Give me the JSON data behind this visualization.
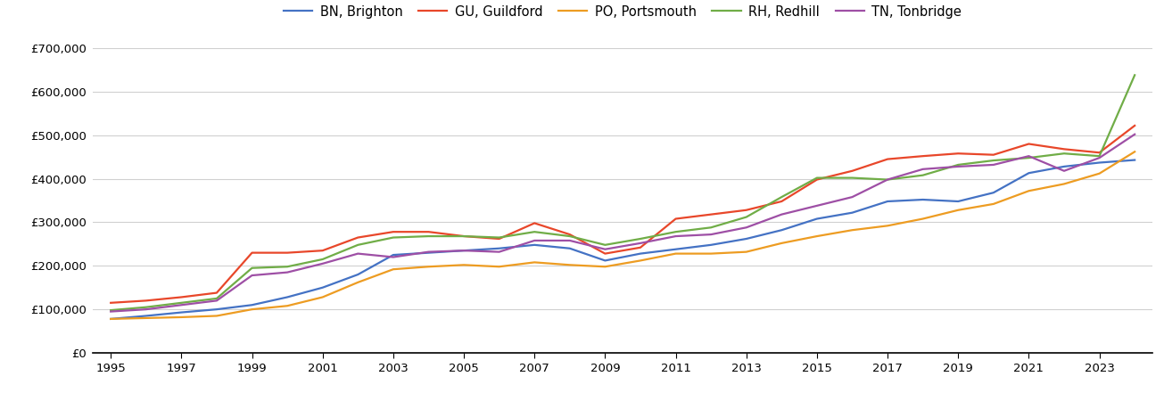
{
  "years": [
    1995,
    1996,
    1997,
    1998,
    1999,
    2000,
    2001,
    2002,
    2003,
    2004,
    2005,
    2006,
    2007,
    2008,
    2009,
    2010,
    2011,
    2012,
    2013,
    2014,
    2015,
    2016,
    2017,
    2018,
    2019,
    2020,
    2021,
    2022,
    2023,
    2024
  ],
  "BN_Brighton": [
    78000,
    85000,
    93000,
    100000,
    110000,
    128000,
    150000,
    180000,
    225000,
    230000,
    235000,
    240000,
    248000,
    240000,
    212000,
    228000,
    238000,
    248000,
    262000,
    282000,
    308000,
    322000,
    348000,
    352000,
    348000,
    368000,
    413000,
    428000,
    437000,
    443000
  ],
  "GU_Guildford": [
    115000,
    120000,
    128000,
    138000,
    230000,
    230000,
    235000,
    265000,
    278000,
    278000,
    268000,
    262000,
    298000,
    272000,
    228000,
    242000,
    308000,
    318000,
    328000,
    348000,
    398000,
    418000,
    445000,
    452000,
    458000,
    455000,
    480000,
    468000,
    460000,
    522000
  ],
  "PO_Portsmouth": [
    78000,
    80000,
    82000,
    85000,
    100000,
    108000,
    128000,
    162000,
    192000,
    198000,
    202000,
    198000,
    208000,
    202000,
    198000,
    212000,
    228000,
    228000,
    232000,
    252000,
    268000,
    282000,
    292000,
    308000,
    328000,
    342000,
    372000,
    388000,
    412000,
    462000
  ],
  "RH_Redhill": [
    98000,
    105000,
    115000,
    125000,
    195000,
    198000,
    215000,
    248000,
    265000,
    268000,
    268000,
    265000,
    278000,
    268000,
    248000,
    262000,
    278000,
    288000,
    312000,
    358000,
    402000,
    402000,
    398000,
    408000,
    432000,
    442000,
    448000,
    458000,
    452000,
    638000
  ],
  "TN_Tonbridge": [
    95000,
    100000,
    110000,
    120000,
    178000,
    185000,
    205000,
    228000,
    220000,
    232000,
    235000,
    232000,
    258000,
    258000,
    238000,
    252000,
    268000,
    272000,
    288000,
    318000,
    338000,
    358000,
    398000,
    422000,
    428000,
    432000,
    452000,
    418000,
    448000,
    502000
  ],
  "colors": {
    "BN_Brighton": "#4472c4",
    "GU_Guildford": "#e8472a",
    "PO_Portsmouth": "#ed9c22",
    "RH_Redhill": "#70ad47",
    "TN_Tonbridge": "#9e4fa5"
  },
  "legend_labels": {
    "BN_Brighton": "BN, Brighton",
    "GU_Guildford": "GU, Guildford",
    "PO_Portsmouth": "PO, Portsmouth",
    "RH_Redhill": "RH, Redhill",
    "TN_Tonbridge": "TN, Tonbridge"
  },
  "ylim": [
    0,
    700000
  ],
  "yticks": [
    0,
    100000,
    200000,
    300000,
    400000,
    500000,
    600000,
    700000
  ],
  "xticks": [
    1995,
    1997,
    1999,
    2001,
    2003,
    2005,
    2007,
    2009,
    2011,
    2013,
    2015,
    2017,
    2019,
    2021,
    2023
  ],
  "xlim_left": 1994.5,
  "xlim_right": 2024.5,
  "background_color": "#ffffff",
  "grid_color": "#d0d0d0",
  "linewidth": 1.6
}
